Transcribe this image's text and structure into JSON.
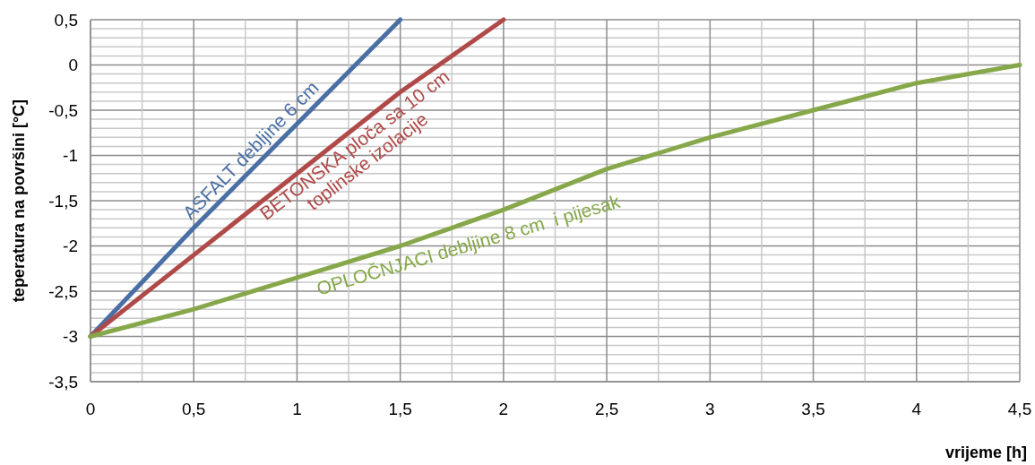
{
  "chart_data": {
    "type": "line",
    "xlabel": "vrijeme [h]",
    "ylabel": "teperatura na površini [°C]",
    "xlim": [
      0,
      4.5
    ],
    "ylim": [
      -3.5,
      0.5
    ],
    "xticks": [
      0,
      {
        "value": 0.25,
        "label": null
      },
      {
        "value": 0.5,
        "label": "0,5"
      },
      {
        "value": 0.75,
        "label": null
      },
      1,
      {
        "value": 1.25,
        "label": null
      },
      {
        "value": 1.5,
        "label": "1,5"
      },
      {
        "value": 1.75,
        "label": null
      },
      2,
      {
        "value": 2.25,
        "label": null
      },
      {
        "value": 2.5,
        "label": "2,5"
      },
      {
        "value": 2.75,
        "label": null
      },
      3,
      {
        "value": 3.25,
        "label": null
      },
      {
        "value": 3.5,
        "label": "3,5"
      },
      {
        "value": 3.75,
        "label": null
      },
      4,
      {
        "value": 4.25,
        "label": null
      },
      {
        "value": 4.5,
        "label": "4,5"
      }
    ],
    "yticks": [
      {
        "value": -3.5,
        "label": "-3,5"
      },
      {
        "value": -3.4,
        "label": null
      },
      {
        "value": -3.3,
        "label": null
      },
      {
        "value": -3.2,
        "label": null
      },
      {
        "value": -3.1,
        "label": null
      },
      -3,
      {
        "value": -2.9,
        "label": null
      },
      {
        "value": -2.8,
        "label": null
      },
      {
        "value": -2.7,
        "label": null
      },
      {
        "value": -2.6,
        "label": null
      },
      {
        "value": -2.5,
        "label": "-2,5"
      },
      {
        "value": -2.4,
        "label": null
      },
      {
        "value": -2.3,
        "label": null
      },
      {
        "value": -2.2,
        "label": null
      },
      {
        "value": -2.1,
        "label": null
      },
      -2,
      {
        "value": -1.9,
        "label": null
      },
      {
        "value": -1.8,
        "label": null
      },
      {
        "value": -1.7,
        "label": null
      },
      {
        "value": -1.6,
        "label": null
      },
      {
        "value": -1.5,
        "label": "-1,5"
      },
      {
        "value": -1.4,
        "label": null
      },
      {
        "value": -1.3,
        "label": null
      },
      {
        "value": -1.2,
        "label": null
      },
      {
        "value": -1.1,
        "label": null
      },
      -1,
      {
        "value": -0.9,
        "label": null
      },
      {
        "value": -0.8,
        "label": null
      },
      {
        "value": -0.7,
        "label": null
      },
      {
        "value": -0.6,
        "label": null
      },
      {
        "value": -0.5,
        "label": "-0,5"
      },
      {
        "value": -0.4,
        "label": null
      },
      {
        "value": -0.3,
        "label": null
      },
      {
        "value": -0.2,
        "label": null
      },
      {
        "value": -0.1,
        "label": null
      },
      0,
      {
        "value": 0.1,
        "label": null
      },
      {
        "value": 0.2,
        "label": null
      },
      {
        "value": 0.3,
        "label": null
      },
      {
        "value": 0.4,
        "label": null
      },
      {
        "value": 0.5,
        "label": "0,5"
      }
    ],
    "grid": true,
    "line_style": "solid",
    "series": [
      {
        "name": "ASFALT debljine 6 cm",
        "color": "#4a6fa5",
        "x": [
          0,
          0.5,
          1,
          1.5
        ],
        "values": [
          -3,
          -1.8,
          -0.65,
          0.5
        ]
      },
      {
        "name": "BETONSKA ploča sa 10 cm\ntoplinske izolacije",
        "color": "#b04a48",
        "x": [
          0,
          0.5,
          1,
          1.5,
          2
        ],
        "values": [
          -3,
          -2.1,
          -1.2,
          -0.3,
          0.5
        ]
      },
      {
        "name": "OPLOČNJACI debljine 8 cm  i pijesak",
        "color": "#86a84a",
        "x": [
          0,
          0.5,
          1,
          1.5,
          2,
          2.5,
          3,
          3.5,
          4,
          4.5
        ],
        "values": [
          -3,
          -2.7,
          -2.35,
          -2,
          -1.6,
          -1.15,
          -0.8,
          -0.5,
          -0.2,
          0
        ]
      }
    ]
  }
}
